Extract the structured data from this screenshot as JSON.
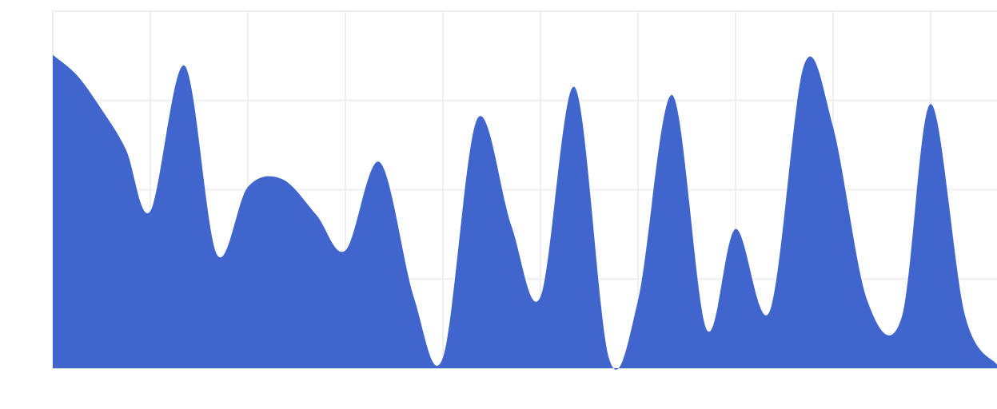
{
  "chart_data": {
    "type": "area",
    "title": "",
    "xlabel": "",
    "ylabel": "",
    "grid": true,
    "legend": "none",
    "xlim": [
      0,
      9.68
    ],
    "ylim": [
      0,
      4
    ],
    "tick_labels_visible": false,
    "series": [
      {
        "color": "#3c63cc",
        "points": [
          [
            0.0,
            3.51
          ],
          [
            0.25,
            3.28
          ],
          [
            0.5,
            2.9
          ],
          [
            0.75,
            2.45
          ],
          [
            1.0,
            1.76
          ],
          [
            1.35,
            3.39
          ],
          [
            1.68,
            1.28
          ],
          [
            2.0,
            2.03
          ],
          [
            2.35,
            2.12
          ],
          [
            2.7,
            1.72
          ],
          [
            3.0,
            1.32
          ],
          [
            3.35,
            2.31
          ],
          [
            3.7,
            0.8
          ],
          [
            4.0,
            0.12
          ],
          [
            4.35,
            2.79
          ],
          [
            4.7,
            1.6
          ],
          [
            5.0,
            0.8
          ],
          [
            5.35,
            3.15
          ],
          [
            5.7,
            0.12
          ],
          [
            6.0,
            0.76
          ],
          [
            6.35,
            3.06
          ],
          [
            6.7,
            0.44
          ],
          [
            7.0,
            1.56
          ],
          [
            7.35,
            0.64
          ],
          [
            7.7,
            3.39
          ],
          [
            8.0,
            2.7
          ],
          [
            8.35,
            0.76
          ],
          [
            8.7,
            0.56
          ],
          [
            9.0,
            2.96
          ],
          [
            9.35,
            0.6
          ],
          [
            9.68,
            0.04
          ]
        ]
      }
    ]
  }
}
